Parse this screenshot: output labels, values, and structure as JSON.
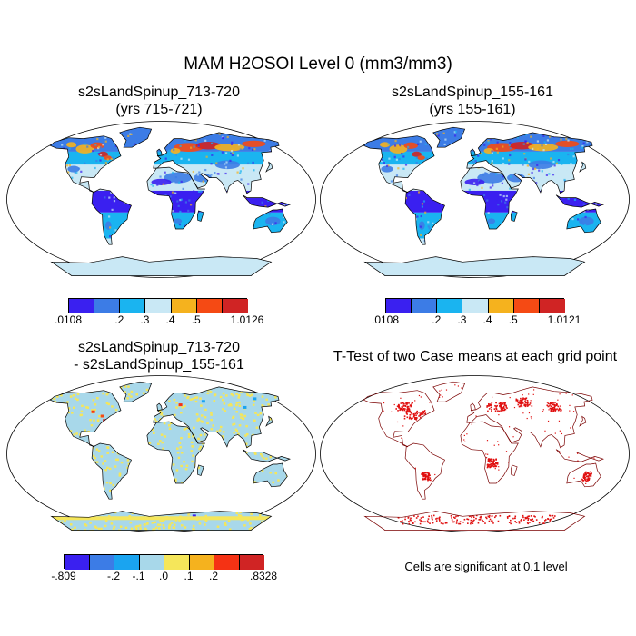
{
  "figure": {
    "title": "MAM H2OSOI Level 0 (mm3/mm3)"
  },
  "panels": {
    "p1": {
      "title_line1": "s2sLandSpinup_713-720",
      "title_line2": "(yrs 715-721)"
    },
    "p2": {
      "title_line1": "s2sLandSpinup_155-161",
      "title_line2": "(yrs 155-161)"
    },
    "p3": {
      "title_line1": "s2sLandSpinup_713-720",
      "title_line2": "- s2sLandSpinup_155-161"
    },
    "p4": {
      "title_line1": "T-Test of two Case means at each grid point",
      "note": "Cells are significant at 0.1 level"
    }
  },
  "colorbars": {
    "cb1": {
      "colors": [
        "#3a20f0",
        "#3c7ce6",
        "#1ab4f0",
        "#c9e8f5",
        "#f5b21e",
        "#f54a14",
        "#d02424"
      ],
      "labels": [
        ".0108",
        ".2",
        ".3",
        ".4",
        ".5",
        "1.0126"
      ],
      "label_edges": [
        0,
        2,
        3,
        4,
        5,
        7
      ]
    },
    "cb2": {
      "colors": [
        "#3a20f0",
        "#3c7ce6",
        "#1ab4f0",
        "#c9e8f5",
        "#f5b21e",
        "#f54a14",
        "#d02424"
      ],
      "labels": [
        ".0108",
        ".2",
        ".3",
        ".4",
        ".5",
        "1.0121"
      ],
      "label_edges": [
        0,
        2,
        3,
        4,
        5,
        7
      ]
    },
    "cb3": {
      "colors": [
        "#3a20f0",
        "#3c7ce6",
        "#1aa4f0",
        "#a8d8ea",
        "#f5e65a",
        "#f5b21e",
        "#f53214",
        "#d02424"
      ],
      "labels": [
        "-.809",
        "-.2",
        "-.1",
        ".0",
        ".1",
        ".2",
        ".8328"
      ],
      "label_edges": [
        0,
        2,
        3,
        4,
        5,
        6,
        8
      ]
    }
  },
  "map_colors": {
    "ocean": "#ffffff",
    "outline": "#000000",
    "panel_fill_wet": "#3a20f0",
    "diff_land": "#a8d8ea",
    "diff_pos": "#f5e65a",
    "sig_cells": "#e01010"
  }
}
